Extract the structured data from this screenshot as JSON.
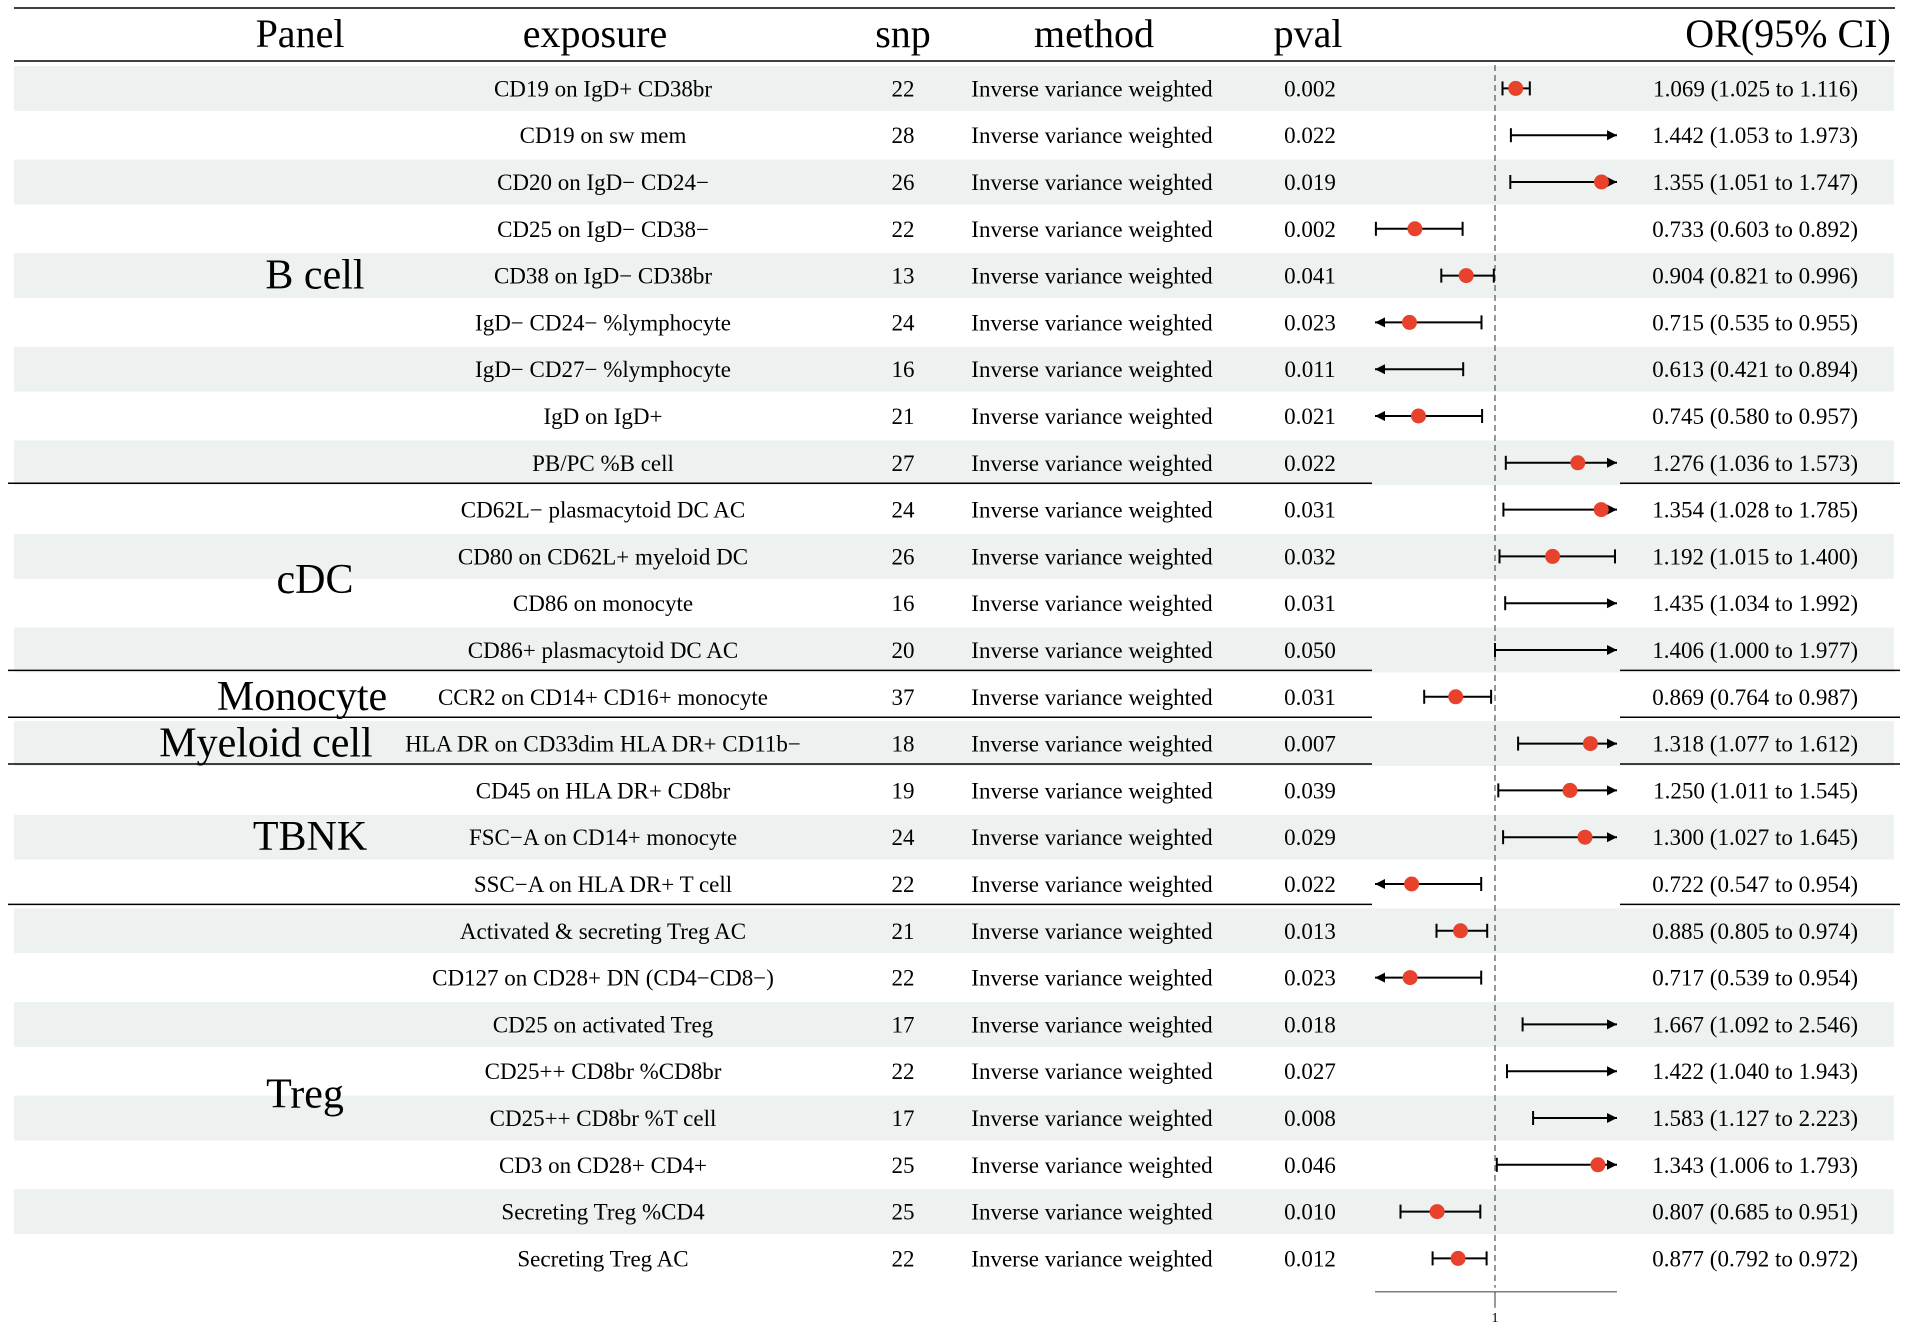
{
  "chart_data": {
    "type": "forest",
    "headers": {
      "panel": "Panel",
      "exposure": "exposure",
      "snp": "snp",
      "method": "method",
      "pval": "pval",
      "or": "OR(95% CI)"
    },
    "reference_line": 1,
    "x_tick_label": "1",
    "x_display_range": [
      0.75,
      1.55
    ],
    "colors": {
      "point": "#e8412c",
      "shade": "#edf2f0",
      "line": "#000000",
      "text": "#111111"
    },
    "groups": [
      {
        "panel": "B cell",
        "rows": [
          0,
          8
        ]
      },
      {
        "panel": "cDC",
        "rows": [
          9,
          12
        ]
      },
      {
        "panel": "Monocyte",
        "rows": [
          13,
          13
        ]
      },
      {
        "panel": "Myeloid cell",
        "rows": [
          14,
          14
        ]
      },
      {
        "panel": "TBNK",
        "rows": [
          15,
          17
        ]
      },
      {
        "panel": "Treg",
        "rows": [
          18,
          25
        ]
      }
    ],
    "rows": [
      {
        "exposure": "CD19 on IgD+ CD38br",
        "snp": "22",
        "method": "Inverse variance weighted",
        "pval": "0.002",
        "or": 1.069,
        "lo": 1.025,
        "hi": 1.116,
        "or_text": "1.069 (1.025 to 1.116)"
      },
      {
        "exposure": "CD19 on sw mem",
        "snp": "28",
        "method": "Inverse variance weighted",
        "pval": "0.022",
        "or": 1.442,
        "lo": 1.053,
        "hi": 1.973,
        "or_text": "1.442 (1.053 to 1.973)"
      },
      {
        "exposure": "CD20 on IgD− CD24−",
        "snp": "26",
        "method": "Inverse variance weighted",
        "pval": "0.019",
        "or": 1.355,
        "lo": 1.051,
        "hi": 1.747,
        "or_text": "1.355 (1.051 to 1.747)"
      },
      {
        "exposure": "CD25 on IgD− CD38−",
        "snp": "22",
        "method": "Inverse variance weighted",
        "pval": "0.002",
        "or": 0.733,
        "lo": 0.603,
        "hi": 0.892,
        "or_text": "0.733 (0.603 to 0.892)"
      },
      {
        "exposure": "CD38 on IgD− CD38br",
        "snp": "13",
        "method": "Inverse variance weighted",
        "pval": "0.041",
        "or": 0.904,
        "lo": 0.821,
        "hi": 0.996,
        "or_text": "0.904 (0.821 to 0.996)"
      },
      {
        "exposure": "IgD− CD24− %lymphocyte",
        "snp": "24",
        "method": "Inverse variance weighted",
        "pval": "0.023",
        "or": 0.715,
        "lo": 0.535,
        "hi": 0.955,
        "or_text": "0.715 (0.535 to 0.955)"
      },
      {
        "exposure": "IgD− CD27− %lymphocyte",
        "snp": "16",
        "method": "Inverse variance weighted",
        "pval": "0.011",
        "or": 0.613,
        "lo": 0.421,
        "hi": 0.894,
        "or_text": "0.613 (0.421 to 0.894)"
      },
      {
        "exposure": "IgD on IgD+",
        "snp": "21",
        "method": "Inverse variance weighted",
        "pval": "0.021",
        "or": 0.745,
        "lo": 0.58,
        "hi": 0.957,
        "or_text": "0.745 (0.580 to 0.957)"
      },
      {
        "exposure": "PB/PC %B cell",
        "snp": "27",
        "method": "Inverse variance weighted",
        "pval": "0.022",
        "or": 1.276,
        "lo": 1.036,
        "hi": 1.573,
        "or_text": "1.276 (1.036 to 1.573)"
      },
      {
        "exposure": "CD62L− plasmacytoid DC AC",
        "snp": "24",
        "method": "Inverse variance weighted",
        "pval": "0.031",
        "or": 1.354,
        "lo": 1.028,
        "hi": 1.785,
        "or_text": "1.354 (1.028 to 1.785)"
      },
      {
        "exposure": "CD80 on CD62L+ myeloid DC",
        "snp": "26",
        "method": "Inverse variance weighted",
        "pval": "0.032",
        "or": 1.192,
        "lo": 1.015,
        "hi": 1.4,
        "or_text": "1.192 (1.015 to 1.400)"
      },
      {
        "exposure": "CD86 on monocyte",
        "snp": "16",
        "method": "Inverse variance weighted",
        "pval": "0.031",
        "or": 1.435,
        "lo": 1.034,
        "hi": 1.992,
        "or_text": "1.435 (1.034 to 1.992)"
      },
      {
        "exposure": "CD86+ plasmacytoid DC AC",
        "snp": "20",
        "method": "Inverse variance weighted",
        "pval": "0.050",
        "or": 1.406,
        "lo": 1.0,
        "hi": 1.977,
        "or_text": "1.406 (1.000 to 1.977)"
      },
      {
        "exposure": "CCR2 on CD14+ CD16+ monocyte",
        "snp": "37",
        "method": "Inverse variance weighted",
        "pval": "0.031",
        "or": 0.869,
        "lo": 0.764,
        "hi": 0.987,
        "or_text": "0.869 (0.764 to 0.987)"
      },
      {
        "exposure": "HLA DR on CD33dim HLA DR+ CD11b−",
        "snp": "18",
        "method": "Inverse variance weighted",
        "pval": "0.007",
        "or": 1.318,
        "lo": 1.077,
        "hi": 1.612,
        "or_text": "1.318 (1.077 to 1.612)"
      },
      {
        "exposure": "CD45 on HLA DR+ CD8br",
        "snp": "19",
        "method": "Inverse variance weighted",
        "pval": "0.039",
        "or": 1.25,
        "lo": 1.011,
        "hi": 1.545,
        "or_text": "1.250 (1.011 to 1.545)"
      },
      {
        "exposure": "FSC−A on CD14+ monocyte",
        "snp": "24",
        "method": "Inverse variance weighted",
        "pval": "0.029",
        "or": 1.3,
        "lo": 1.027,
        "hi": 1.645,
        "or_text": "1.300 (1.027 to 1.645)"
      },
      {
        "exposure": "SSC−A on HLA DR+ T cell",
        "snp": "22",
        "method": "Inverse variance weighted",
        "pval": "0.022",
        "or": 0.722,
        "lo": 0.547,
        "hi": 0.954,
        "or_text": "0.722 (0.547 to 0.954)"
      },
      {
        "exposure": "Activated & secreting Treg AC",
        "snp": "21",
        "method": "Inverse variance weighted",
        "pval": "0.013",
        "or": 0.885,
        "lo": 0.805,
        "hi": 0.974,
        "or_text": "0.885 (0.805 to 0.974)"
      },
      {
        "exposure": "CD127 on CD28+ DN (CD4−CD8−)",
        "snp": "22",
        "method": "Inverse variance weighted",
        "pval": "0.023",
        "or": 0.717,
        "lo": 0.539,
        "hi": 0.954,
        "or_text": "0.717 (0.539 to 0.954)"
      },
      {
        "exposure": "CD25 on activated Treg",
        "snp": "17",
        "method": "Inverse variance weighted",
        "pval": "0.018",
        "or": 1.667,
        "lo": 1.092,
        "hi": 2.546,
        "or_text": "1.667 (1.092 to 2.546)"
      },
      {
        "exposure": "CD25++ CD8br %CD8br",
        "snp": "22",
        "method": "Inverse variance weighted",
        "pval": "0.027",
        "or": 1.422,
        "lo": 1.04,
        "hi": 1.943,
        "or_text": "1.422 (1.040 to 1.943)"
      },
      {
        "exposure": "CD25++ CD8br %T cell",
        "snp": "17",
        "method": "Inverse variance weighted",
        "pval": "0.008",
        "or": 1.583,
        "lo": 1.127,
        "hi": 2.223,
        "or_text": "1.583 (1.127 to 2.223)"
      },
      {
        "exposure": "CD3 on CD28+ CD4+",
        "snp": "25",
        "method": "Inverse variance weighted",
        "pval": "0.046",
        "or": 1.343,
        "lo": 1.006,
        "hi": 1.793,
        "or_text": "1.343 (1.006 to 1.793)"
      },
      {
        "exposure": "Secreting Treg %CD4",
        "snp": "25",
        "method": "Inverse variance weighted",
        "pval": "0.010",
        "or": 0.807,
        "lo": 0.685,
        "hi": 0.951,
        "or_text": "0.807 (0.685 to 0.951)"
      },
      {
        "exposure": "Secreting Treg AC",
        "snp": "22",
        "method": "Inverse variance weighted",
        "pval": "0.012",
        "or": 0.877,
        "lo": 0.792,
        "hi": 0.972,
        "or_text": "0.877 (0.792 to 0.972)"
      }
    ]
  }
}
